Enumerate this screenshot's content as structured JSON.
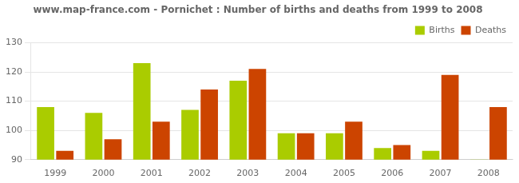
{
  "chart_data": {
    "type": "bar",
    "title": "www.map-france.com - Pornichet : Number of births and deaths from 1999 to 2008",
    "categories": [
      "1999",
      "2000",
      "2001",
      "2002",
      "2003",
      "2004",
      "2005",
      "2006",
      "2007",
      "2008"
    ],
    "series": [
      {
        "name": "Births",
        "color": "#aacc00",
        "values": [
          108,
          106,
          123,
          107,
          117,
          99,
          99,
          94,
          93,
          90
        ]
      },
      {
        "name": "Deaths",
        "color": "#cc4400",
        "values": [
          93,
          97,
          103,
          114,
          121,
          99,
          103,
          95,
          119,
          108
        ]
      }
    ],
    "ylim": [
      90,
      130
    ],
    "yticks": [
      90,
      100,
      110,
      120,
      130
    ],
    "grid": true,
    "legend": "upper right"
  }
}
